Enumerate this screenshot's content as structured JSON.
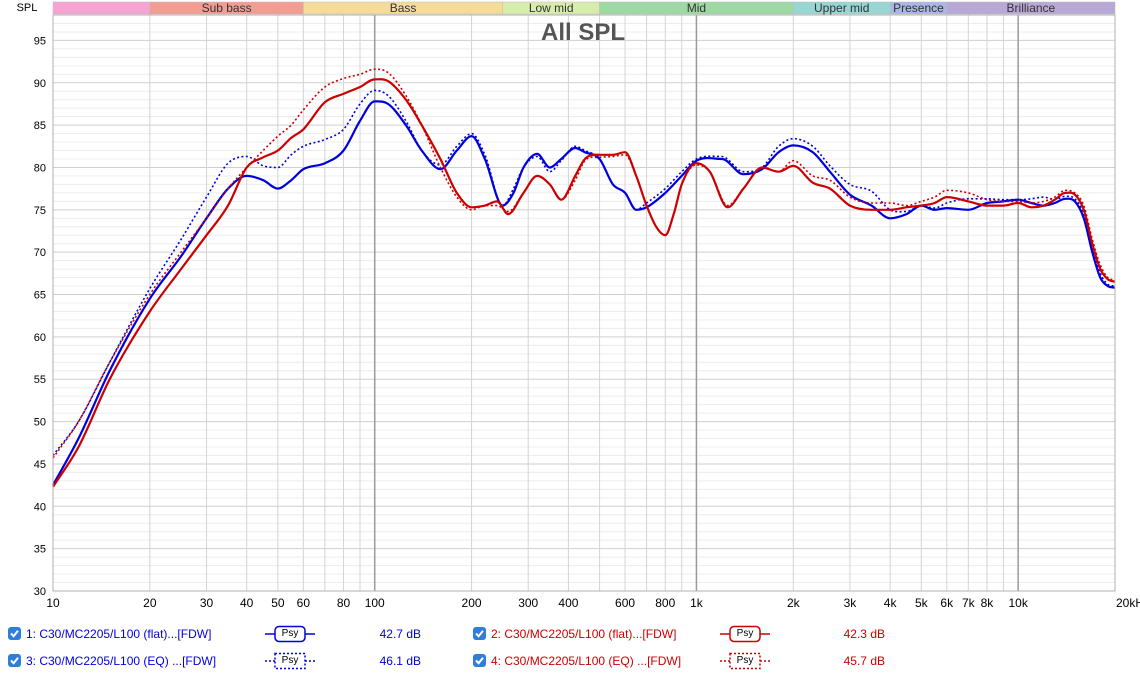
{
  "chart_data": {
    "type": "line",
    "title": "All SPL",
    "ylabel": "SPL",
    "xscale": "log",
    "xlim": [
      10,
      20000
    ],
    "ylim": [
      30,
      98
    ],
    "grid": true,
    "y_ticks": [
      30,
      35,
      40,
      45,
      50,
      55,
      60,
      65,
      70,
      75,
      80,
      85,
      90,
      95
    ],
    "x_ticks": [
      {
        "v": 10,
        "label": "10"
      },
      {
        "v": 20,
        "label": "20"
      },
      {
        "v": 30,
        "label": "30"
      },
      {
        "v": 40,
        "label": "40"
      },
      {
        "v": 50,
        "label": "50"
      },
      {
        "v": 60,
        "label": "60"
      },
      {
        "v": 80,
        "label": "80"
      },
      {
        "v": 100,
        "label": "100"
      },
      {
        "v": 200,
        "label": "200"
      },
      {
        "v": 300,
        "label": "300"
      },
      {
        "v": 400,
        "label": "400"
      },
      {
        "v": 600,
        "label": "600"
      },
      {
        "v": 800,
        "label": "800"
      },
      {
        "v": 1000,
        "label": "1k"
      },
      {
        "v": 2000,
        "label": "2k"
      },
      {
        "v": 3000,
        "label": "3k"
      },
      {
        "v": 4000,
        "label": "4k"
      },
      {
        "v": 5000,
        "label": "5k"
      },
      {
        "v": 6000,
        "label": "6k"
      },
      {
        "v": 7000,
        "label": "7k"
      },
      {
        "v": 8000,
        "label": "8k"
      },
      {
        "v": 10000,
        "label": "10k"
      },
      {
        "v": 20000,
        "label": "20kHz"
      }
    ],
    "bands": [
      {
        "label": "",
        "from": 10,
        "to": 20,
        "color": "#f6a4d4"
      },
      {
        "label": "Sub bass",
        "from": 20,
        "to": 60,
        "color": "#f39c94"
      },
      {
        "label": "Bass",
        "from": 60,
        "to": 250,
        "color": "#f5dc98"
      },
      {
        "label": "Low mid",
        "from": 250,
        "to": 500,
        "color": "#d8edab"
      },
      {
        "label": "Mid",
        "from": 500,
        "to": 2000,
        "color": "#9ed9a4"
      },
      {
        "label": "Upper mid",
        "from": 2000,
        "to": 4000,
        "color": "#97d6d2"
      },
      {
        "label": "Presence",
        "from": 4000,
        "to": 6000,
        "color": "#aab6e6"
      },
      {
        "label": "Brilliance",
        "from": 6000,
        "to": 20000,
        "color": "#b8a8d6"
      }
    ],
    "series": [
      {
        "name": "1: C30/MC2205/L100 (flat)...[FDW]",
        "color": "#0000dd",
        "dash": "solid",
        "badge": "Psy",
        "value": "42.7 dB",
        "points": [
          [
            10,
            42.5
          ],
          [
            12,
            48
          ],
          [
            15,
            56
          ],
          [
            20,
            64.5
          ],
          [
            25,
            69.5
          ],
          [
            30,
            74
          ],
          [
            35,
            77.5
          ],
          [
            40,
            79
          ],
          [
            45,
            78.5
          ],
          [
            50,
            77.5
          ],
          [
            55,
            78.5
          ],
          [
            60,
            79.8
          ],
          [
            70,
            80.5
          ],
          [
            80,
            82
          ],
          [
            90,
            85.5
          ],
          [
            100,
            87.8
          ],
          [
            110,
            87.5
          ],
          [
            125,
            85
          ],
          [
            140,
            82
          ],
          [
            160,
            79.8
          ],
          [
            180,
            82
          ],
          [
            200,
            83.7
          ],
          [
            220,
            81
          ],
          [
            250,
            75.5
          ],
          [
            270,
            77
          ],
          [
            290,
            80
          ],
          [
            320,
            81.6
          ],
          [
            350,
            80
          ],
          [
            380,
            81
          ],
          [
            420,
            82.3
          ],
          [
            450,
            81.8
          ],
          [
            500,
            81
          ],
          [
            550,
            78
          ],
          [
            600,
            77
          ],
          [
            650,
            75
          ],
          [
            700,
            75.3
          ],
          [
            800,
            77
          ],
          [
            900,
            79
          ],
          [
            1000,
            80.8
          ],
          [
            1200,
            81
          ],
          [
            1400,
            79.2
          ],
          [
            1600,
            79.8
          ],
          [
            1800,
            81.8
          ],
          [
            2000,
            82.6
          ],
          [
            2300,
            81.8
          ],
          [
            2600,
            79.5
          ],
          [
            3000,
            76.8
          ],
          [
            3500,
            75.5
          ],
          [
            4000,
            74
          ],
          [
            4500,
            74.5
          ],
          [
            5000,
            75.5
          ],
          [
            5500,
            75
          ],
          [
            6000,
            75.2
          ],
          [
            7000,
            75
          ],
          [
            8000,
            75.8
          ],
          [
            9000,
            76
          ],
          [
            10000,
            76.2
          ],
          [
            11000,
            75.8
          ],
          [
            12000,
            75.5
          ],
          [
            13000,
            75.8
          ],
          [
            14000,
            76.3
          ],
          [
            15000,
            76
          ],
          [
            16000,
            74
          ],
          [
            17000,
            70
          ],
          [
            18000,
            67
          ],
          [
            19000,
            66
          ],
          [
            20000,
            65.8
          ]
        ]
      },
      {
        "name": "3: C30/MC2205/L100 (EQ) ...[FDW]",
        "color": "#0000dd",
        "dash": "dotted",
        "badge": "Psy",
        "value": "46.1 dB",
        "points": [
          [
            10,
            46
          ],
          [
            12,
            50
          ],
          [
            15,
            57
          ],
          [
            20,
            65.7
          ],
          [
            25,
            71.5
          ],
          [
            30,
            76.5
          ],
          [
            35,
            80.5
          ],
          [
            40,
            81.3
          ],
          [
            45,
            80.2
          ],
          [
            50,
            80
          ],
          [
            55,
            81.5
          ],
          [
            60,
            82.5
          ],
          [
            70,
            83.3
          ],
          [
            80,
            84.5
          ],
          [
            90,
            87.5
          ],
          [
            100,
            89.1
          ],
          [
            110,
            88.5
          ],
          [
            125,
            85.5
          ],
          [
            140,
            82
          ],
          [
            160,
            80.3
          ],
          [
            180,
            82.5
          ],
          [
            200,
            84
          ],
          [
            220,
            81.5
          ],
          [
            250,
            75.5
          ],
          [
            270,
            77.5
          ],
          [
            290,
            80
          ],
          [
            320,
            81.3
          ],
          [
            350,
            79.5
          ],
          [
            380,
            80.8
          ],
          [
            420,
            82.5
          ],
          [
            450,
            82
          ],
          [
            500,
            81
          ],
          [
            550,
            78
          ],
          [
            600,
            77
          ],
          [
            650,
            75
          ],
          [
            700,
            75.8
          ],
          [
            800,
            77.5
          ],
          [
            900,
            79.5
          ],
          [
            1000,
            81
          ],
          [
            1200,
            81.3
          ],
          [
            1400,
            79.5
          ],
          [
            1600,
            80
          ],
          [
            1800,
            82.5
          ],
          [
            2000,
            83.4
          ],
          [
            2300,
            82.5
          ],
          [
            2600,
            80.2
          ],
          [
            3000,
            78
          ],
          [
            3500,
            77.2
          ],
          [
            4000,
            75
          ],
          [
            4500,
            74.8
          ],
          [
            5000,
            75.5
          ],
          [
            5500,
            75.2
          ],
          [
            6000,
            75.8
          ],
          [
            7000,
            76.3
          ],
          [
            8000,
            76.3
          ],
          [
            9000,
            76.2
          ],
          [
            10000,
            76.2
          ],
          [
            11000,
            76.3
          ],
          [
            12000,
            76.5
          ],
          [
            13000,
            76.2
          ],
          [
            14000,
            76.6
          ],
          [
            15000,
            76.3
          ],
          [
            16000,
            74.5
          ],
          [
            17000,
            70.5
          ],
          [
            18000,
            67.5
          ],
          [
            19000,
            66.2
          ],
          [
            20000,
            66
          ]
        ]
      },
      {
        "name": "2: C30/MC2205/L100 (flat)...[FDW]",
        "color": "#cc0000",
        "dash": "solid",
        "badge": "Psy",
        "value": "42.3 dB",
        "points": [
          [
            10,
            42.3
          ],
          [
            12,
            47
          ],
          [
            15,
            55
          ],
          [
            20,
            63
          ],
          [
            25,
            68
          ],
          [
            30,
            72
          ],
          [
            35,
            75.5
          ],
          [
            40,
            80
          ],
          [
            45,
            81.2
          ],
          [
            50,
            82
          ],
          [
            55,
            83.5
          ],
          [
            60,
            84.5
          ],
          [
            70,
            87.7
          ],
          [
            80,
            88.7
          ],
          [
            90,
            89.5
          ],
          [
            100,
            90.4
          ],
          [
            110,
            90.2
          ],
          [
            125,
            88
          ],
          [
            140,
            85
          ],
          [
            160,
            81
          ],
          [
            180,
            77
          ],
          [
            200,
            75.3
          ],
          [
            220,
            75.5
          ],
          [
            240,
            76
          ],
          [
            260,
            74.5
          ],
          [
            290,
            77
          ],
          [
            320,
            79
          ],
          [
            350,
            78
          ],
          [
            380,
            76.2
          ],
          [
            420,
            79
          ],
          [
            450,
            81
          ],
          [
            500,
            81.5
          ],
          [
            550,
            81.5
          ],
          [
            600,
            81.8
          ],
          [
            650,
            79
          ],
          [
            700,
            75.5
          ],
          [
            750,
            73
          ],
          [
            800,
            72
          ],
          [
            850,
            74.5
          ],
          [
            900,
            78
          ],
          [
            1000,
            80.5
          ],
          [
            1100,
            79.5
          ],
          [
            1250,
            75.3
          ],
          [
            1400,
            77.5
          ],
          [
            1600,
            80
          ],
          [
            1800,
            79.5
          ],
          [
            2000,
            80.2
          ],
          [
            2300,
            78.2
          ],
          [
            2600,
            77.5
          ],
          [
            3000,
            75.5
          ],
          [
            3500,
            75
          ],
          [
            4000,
            75
          ],
          [
            4500,
            75.3
          ],
          [
            5000,
            75.5
          ],
          [
            5500,
            75.8
          ],
          [
            6000,
            76.5
          ],
          [
            7000,
            76
          ],
          [
            8000,
            75.5
          ],
          [
            9000,
            75.5
          ],
          [
            10000,
            75.8
          ],
          [
            11000,
            75.3
          ],
          [
            12000,
            75.5
          ],
          [
            13000,
            76.2
          ],
          [
            14000,
            77
          ],
          [
            15000,
            76.8
          ],
          [
            16000,
            75
          ],
          [
            17000,
            71
          ],
          [
            18000,
            68
          ],
          [
            19000,
            66.8
          ],
          [
            20000,
            66.5
          ]
        ]
      },
      {
        "name": "4: C30/MC2205/L100 (EQ) ...[FDW]",
        "color": "#cc0000",
        "dash": "dotted",
        "badge": "Psy",
        "value": "45.7 dB",
        "points": [
          [
            10,
            45.7
          ],
          [
            12,
            50
          ],
          [
            15,
            57
          ],
          [
            20,
            65
          ],
          [
            25,
            70
          ],
          [
            30,
            74
          ],
          [
            35,
            77.5
          ],
          [
            40,
            80
          ],
          [
            45,
            82
          ],
          [
            50,
            83.7
          ],
          [
            55,
            85
          ],
          [
            60,
            86.8
          ],
          [
            70,
            89.5
          ],
          [
            80,
            90.5
          ],
          [
            90,
            91
          ],
          [
            100,
            91.6
          ],
          [
            110,
            91.2
          ],
          [
            125,
            88.5
          ],
          [
            140,
            85
          ],
          [
            160,
            80
          ],
          [
            180,
            76.5
          ],
          [
            200,
            75
          ],
          [
            220,
            75.5
          ],
          [
            240,
            75.5
          ],
          [
            260,
            74.8
          ],
          [
            290,
            77
          ],
          [
            320,
            79
          ],
          [
            350,
            78
          ],
          [
            380,
            76.2
          ],
          [
            420,
            78.5
          ],
          [
            450,
            80.8
          ],
          [
            500,
            81.2
          ],
          [
            550,
            81.3
          ],
          [
            600,
            81.5
          ],
          [
            650,
            79
          ],
          [
            700,
            75.5
          ],
          [
            750,
            73
          ],
          [
            800,
            72
          ],
          [
            850,
            74.5
          ],
          [
            900,
            78
          ],
          [
            1000,
            80.3
          ],
          [
            1100,
            79.5
          ],
          [
            1250,
            75.5
          ],
          [
            1400,
            77.5
          ],
          [
            1600,
            80
          ],
          [
            1800,
            79.5
          ],
          [
            2000,
            80.8
          ],
          [
            2300,
            79
          ],
          [
            2600,
            78.5
          ],
          [
            3000,
            76.5
          ],
          [
            3500,
            75.8
          ],
          [
            4000,
            75.8
          ],
          [
            4500,
            75.5
          ],
          [
            5000,
            76
          ],
          [
            5500,
            76.5
          ],
          [
            6000,
            77.3
          ],
          [
            7000,
            77
          ],
          [
            8000,
            76.2
          ],
          [
            9000,
            76
          ],
          [
            10000,
            76
          ],
          [
            11000,
            75.8
          ],
          [
            12000,
            76
          ],
          [
            13000,
            76.5
          ],
          [
            14000,
            77.3
          ],
          [
            15000,
            77
          ],
          [
            16000,
            75.5
          ],
          [
            17000,
            71.5
          ],
          [
            18000,
            68.5
          ],
          [
            19000,
            67
          ],
          [
            20000,
            66.7
          ]
        ]
      }
    ]
  }
}
